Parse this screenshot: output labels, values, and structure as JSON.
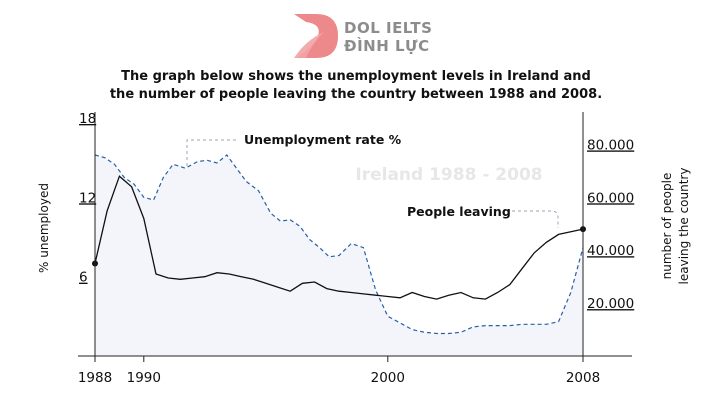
{
  "brand": {
    "name_line1": "DOL IELTS",
    "name_line2": "ĐÌNH LỰC",
    "logo_color": "#e86a6e"
  },
  "chart_data": {
    "type": "line",
    "title": "The graph below shows the unemployment levels in Ireland and the number of people leaving the country between 1988 and 2008.",
    "title_lines": [
      "The graph below shows the unemployment levels in Ireland and",
      "the number of people leaving the country between 1988 and 2008."
    ],
    "watermark": "Ireland 1988 - 2008",
    "xlabel": "",
    "x_ticks": [
      1988,
      1990,
      2000,
      2008
    ],
    "xlim": [
      1988,
      2008
    ],
    "ylabel_left": "% unemployed",
    "yticks_left": [
      6,
      12,
      18
    ],
    "ylim_left": [
      0,
      18
    ],
    "ylabel_right_lines": [
      "number of people",
      "leaving the country"
    ],
    "yticks_right": [
      "20.000",
      "40.000",
      "60.000",
      "80.000"
    ],
    "yticks_right_values": [
      20000,
      40000,
      60000,
      80000
    ],
    "ylim_right": [
      0,
      90000
    ],
    "grid": false,
    "series": [
      {
        "name": "Unemployment rate %",
        "axis": "left",
        "style": "dashed",
        "color": "#2a5fa8",
        "fill": "#f3f5fa",
        "x": [
          1988,
          1988.4,
          1988.8,
          1989.2,
          1989.6,
          1990.0,
          1990.4,
          1990.8,
          1991.2,
          1991.7,
          1992.2,
          1992.6,
          1993.0,
          1993.4,
          1993.8,
          1994.2,
          1994.7,
          1995.2,
          1995.6,
          1996.0,
          1996.4,
          1996.8,
          1997.2,
          1997.6,
          1998.0,
          1998.5,
          1999.0,
          1999.5,
          2000.0,
          2000.5,
          2001.0,
          2001.5,
          2002.0,
          2002.5,
          2003.0,
          2003.5,
          2004.0,
          2004.5,
          2005.0,
          2005.5,
          2006.0,
          2006.5,
          2007.0,
          2007.5,
          2008.0
        ],
        "y": [
          15.2,
          15.0,
          14.5,
          13.5,
          13.0,
          12.0,
          11.8,
          13.5,
          14.5,
          14.2,
          14.7,
          14.8,
          14.6,
          15.2,
          14.2,
          13.2,
          12.5,
          10.8,
          10.2,
          10.3,
          9.8,
          8.8,
          8.2,
          7.5,
          7.6,
          8.5,
          8.2,
          5.0,
          3.0,
          2.5,
          2.0,
          1.8,
          1.7,
          1.7,
          1.8,
          2.2,
          2.3,
          2.3,
          2.3,
          2.4,
          2.4,
          2.4,
          2.6,
          4.8,
          8.2
        ]
      },
      {
        "name": "People leaving",
        "axis": "right",
        "style": "solid",
        "color": "#111111",
        "x": [
          1988,
          1988.5,
          1989,
          1989.5,
          1990,
          1990.5,
          1991,
          1991.5,
          1992,
          1992.5,
          1993,
          1993.5,
          1994,
          1994.5,
          1995,
          1995.5,
          1996,
          1996.5,
          1997,
          1997.5,
          1998,
          1998.5,
          1999,
          1999.5,
          2000,
          2000.5,
          2001,
          2001.5,
          2002,
          2002.5,
          2003,
          2003.5,
          2004,
          2004.5,
          2005,
          2005.5,
          2006,
          2006.5,
          2007,
          2007.5,
          2008
        ],
        "y": [
          35000,
          55000,
          68000,
          64000,
          52000,
          31000,
          29500,
          29000,
          29500,
          30000,
          31500,
          31000,
          30000,
          29000,
          27500,
          26000,
          24500,
          27500,
          28000,
          25500,
          24500,
          24000,
          23500,
          23000,
          22500,
          22000,
          24000,
          22500,
          21500,
          23000,
          24000,
          22000,
          21500,
          24000,
          27000,
          33000,
          39000,
          43000,
          46000,
          47000,
          48000
        ]
      }
    ],
    "annotations": [
      {
        "text": "Unemployment rate %",
        "series": "Unemployment rate %"
      },
      {
        "text": "People leaving",
        "series": "People leaving"
      }
    ]
  }
}
